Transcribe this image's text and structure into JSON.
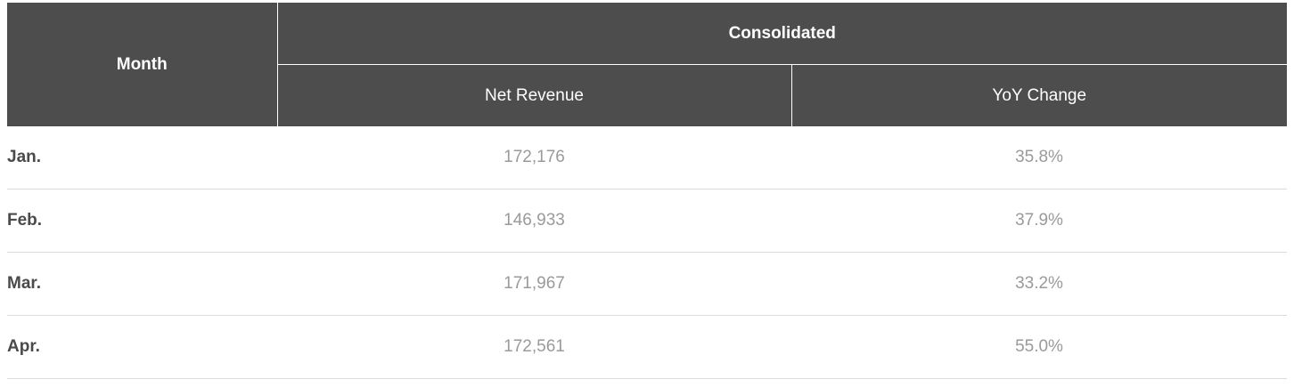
{
  "table": {
    "headers": {
      "month": "Month",
      "group": "Consolidated",
      "net_revenue": "Net Revenue",
      "yoy_change": "YoY Change"
    },
    "rows": [
      {
        "month": "Jan.",
        "net_revenue": "172,176",
        "yoy_change": "35.8%"
      },
      {
        "month": "Feb.",
        "net_revenue": "146,933",
        "yoy_change": "37.9%"
      },
      {
        "month": "Mar.",
        "net_revenue": "171,967",
        "yoy_change": "33.2%"
      },
      {
        "month": "Apr.",
        "net_revenue": "172,561",
        "yoy_change": "55.0%"
      }
    ]
  },
  "colors": {
    "header_bg": "#4d4d4d",
    "header_text": "#ffffff",
    "month_text": "#4a4a4a",
    "value_text": "#9a9a9a",
    "row_divider": "#dcdcdc"
  }
}
